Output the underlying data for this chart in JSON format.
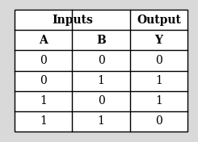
{
  "title_inputs": "Inputs",
  "title_output": "Output",
  "col_headers": [
    "A",
    "B",
    "Y"
  ],
  "rows": [
    [
      "0",
      "0",
      "0"
    ],
    [
      "0",
      "1",
      "1"
    ],
    [
      "1",
      "0",
      "1"
    ],
    [
      "1",
      "1",
      "0"
    ]
  ],
  "bg_color": "#d9d9d9",
  "table_bg": "#ffffff",
  "border_color": "#000000",
  "header_fontsize": 10,
  "data_fontsize": 10,
  "fig_width": 2.45,
  "fig_height": 1.76,
  "dpi": 100
}
